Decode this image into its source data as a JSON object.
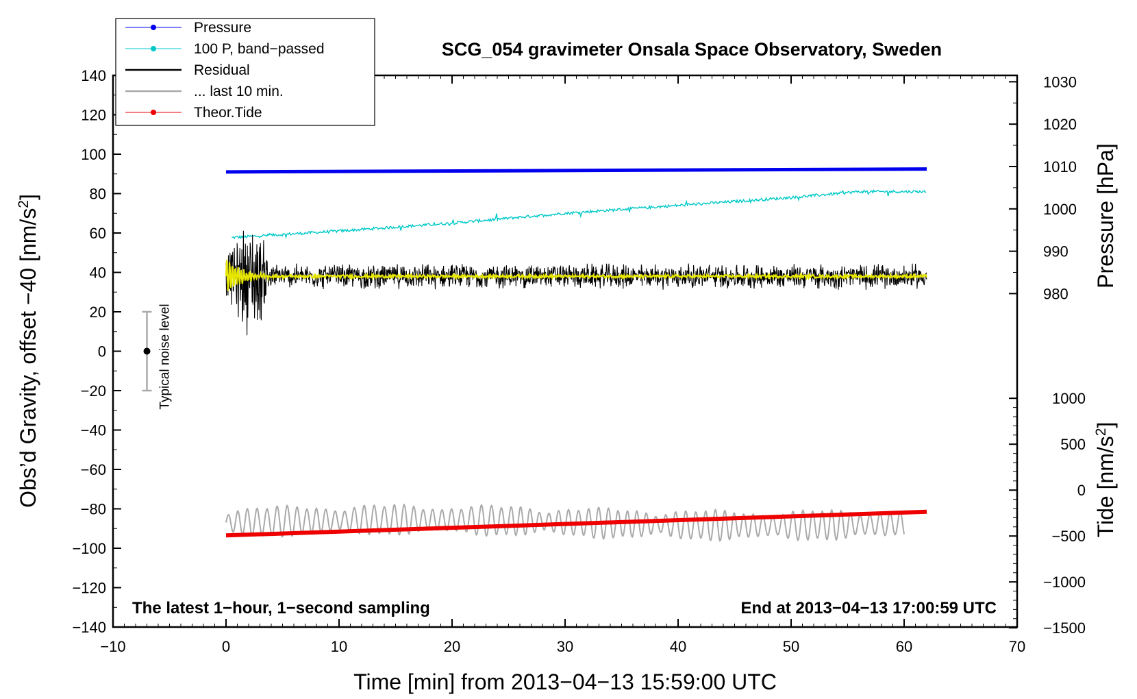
{
  "chart_data": {
    "type": "line",
    "title": "SCG_054 gravimeter Onsala Space Observatory, Sweden",
    "xlabel": "Time [min] from 2013−04−13 15:59:00 UTC",
    "ylabel_left": "Obs’d Gravity, offset −40 [nm/s²]",
    "ylabel_pressure": "Pressure [hPa]",
    "ylabel_tide": "Tide [nm/s²]",
    "xlim": [
      -10,
      70
    ],
    "ylim": [
      -140,
      140
    ],
    "pressure_ylim": [
      1030,
      980
    ],
    "tide_ylim": [
      -1500,
      1000
    ],
    "x_ticks": [
      -10,
      0,
      10,
      20,
      30,
      40,
      50,
      60,
      70
    ],
    "x_tick_labels": [
      "−10",
      "0",
      "10",
      "20",
      "30",
      "40",
      "50",
      "60",
      "70"
    ],
    "y_ticks": [
      140,
      120,
      100,
      80,
      60,
      40,
      20,
      0,
      -20,
      -40,
      -60,
      -80,
      -100,
      -120,
      -140
    ],
    "y_tick_labels": [
      "140",
      "120",
      "100",
      "80",
      "60",
      "40",
      "20",
      "0",
      "−20",
      "−40",
      "−60",
      "−80",
      "−100",
      "−120",
      "−140"
    ],
    "pressure_ticks": [
      1030,
      1020,
      1010,
      1000,
      990,
      980
    ],
    "pressure_tick_labels": [
      "1030",
      "1020",
      "1010",
      "1000",
      "990",
      "980"
    ],
    "tide_ticks": [
      1000,
      500,
      0,
      -500,
      -1000,
      -1500
    ],
    "tide_tick_labels": [
      "1000",
      "500",
      "0",
      "−500",
      "−1000",
      "−1500"
    ],
    "legend": {
      "placement": "top-left",
      "entries": [
        {
          "label": "Pressure",
          "color": "#0000ee",
          "marker": true
        },
        {
          "label": "100 P, band−passed",
          "color": "#00c8c8",
          "marker": true
        },
        {
          "label": "Residual",
          "color": "#000000",
          "marker": false
        },
        {
          "label": "... last 10 min.",
          "color": "#aaaaaa",
          "marker": false
        },
        {
          "label": "Theor.Tide",
          "color": "#ee0000",
          "marker": true
        }
      ]
    },
    "series": [
      {
        "name": "Pressure",
        "color": "#0000ee",
        "x": [
          0,
          62
        ],
        "y": [
          91,
          92.5
        ]
      },
      {
        "name": "100 P, band−passed",
        "color": "#00c8c8",
        "x": [
          0,
          10,
          20,
          30,
          40,
          50,
          56,
          62
        ],
        "y": [
          57.5,
          61,
          65,
          70,
          74,
          78,
          81,
          81
        ]
      },
      {
        "name": "Residual",
        "color": "#000000",
        "center": 38,
        "spread": 7
      },
      {
        "name": "Theor.Tide",
        "color": "#ee0000",
        "x": [
          0,
          62
        ],
        "y": [
          -93.5,
          -81.5
        ]
      }
    ],
    "noise_bar": {
      "label": "Typical noise level",
      "x": -7,
      "y": 0,
      "low": -20,
      "high": 20
    },
    "notes": {
      "left": "The latest 1−hour, 1−second sampling",
      "right": "End at 2013−04−13 17:00:59 UTC"
    },
    "colors": {
      "band_passed_overlay": "#e6e600",
      "gray_trace": "#aaaaaa"
    }
  }
}
